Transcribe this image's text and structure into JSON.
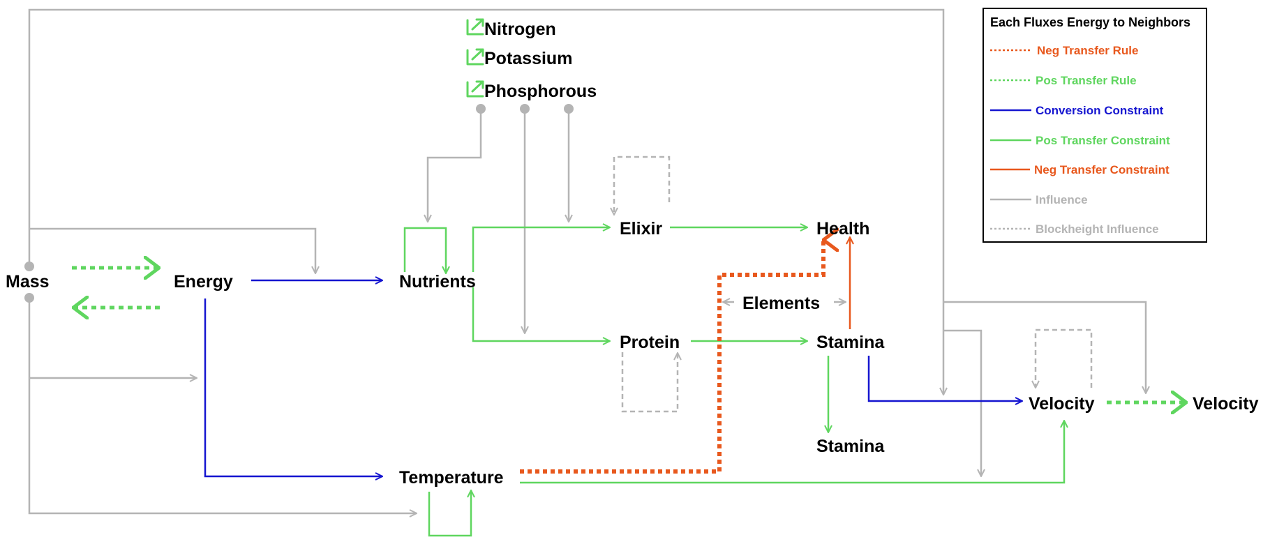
{
  "colors": {
    "influence": "#b4b4b4",
    "conversion": "#1515d0",
    "pos": "#5fd65f",
    "neg": "#e8581d"
  },
  "nodes": {
    "mass": "Mass",
    "energy": "Energy",
    "nutrients": "Nutrients",
    "elixir": "Elixir",
    "protein": "Protein",
    "health": "Health",
    "elements": "Elements",
    "stamina": "Stamina",
    "stamina_out": "Stamina",
    "temperature": "Temperature",
    "velocity": "Velocity",
    "velocity_out": "Velocity",
    "nitrogen": "Nitrogen",
    "potassium": "Potassium",
    "phosphorous": "Phosphorous"
  },
  "legend": {
    "title": "Each Fluxes Energy to Neighbors",
    "items": [
      {
        "label": "Neg Transfer Rule",
        "color": "#e8581d"
      },
      {
        "label": "Pos Transfer Rule",
        "color": "#5fd65f"
      },
      {
        "label": "Conversion Constraint",
        "color": "#1515d0"
      },
      {
        "label": "Pos Transfer Constraint",
        "color": "#5fd65f"
      },
      {
        "label": "Neg Transfer Constraint",
        "color": "#e8581d"
      },
      {
        "label": "Influence",
        "color": "#b4b4b4"
      },
      {
        "label": "Blockheight Influence",
        "color": "#b4b4b4"
      }
    ]
  }
}
